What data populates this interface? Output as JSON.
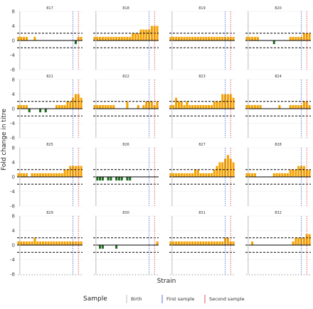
{
  "chart_data": {
    "type": "bar",
    "facet_layout": {
      "rows": 4,
      "cols": 4
    },
    "xlabel": "Strain",
    "ylabel": "Fold change in titre",
    "ylim": [
      -8,
      8
    ],
    "yticks": [
      -8,
      -4,
      0,
      4,
      8
    ],
    "reference_lines": {
      "dashed_y": [
        2,
        -2
      ],
      "solid_y": 0
    },
    "strain_count": 24,
    "strain_tick_labels": [
      "",
      "",
      "",
      "",
      "",
      "",
      "",
      "",
      "",
      "",
      "",
      "",
      "",
      "",
      "",
      "",
      "",
      "",
      "",
      "",
      "",
      "",
      "",
      ""
    ],
    "legend": {
      "title": "Sample",
      "placement": "bottom",
      "entries": [
        {
          "label": "Birth",
          "color": "#bdbdbd"
        },
        {
          "label": "First sample",
          "color": "#5b6fd6"
        },
        {
          "label": "Second sample",
          "color": "#e0525a"
        }
      ]
    },
    "colors": {
      "positive": "#f5a300",
      "negative": "#1f6b1f",
      "grid": "#ebebeb",
      "axis": "#000000"
    },
    "panels": [
      {
        "title": "817",
        "birth": 1,
        "first": 20.5,
        "second": 22.5,
        "values": [
          1,
          1,
          1,
          1,
          0,
          0,
          1,
          0,
          0,
          0,
          0,
          0,
          0,
          0,
          0,
          0,
          0,
          0,
          0,
          0,
          0,
          -1,
          1,
          1
        ]
      },
      {
        "title": "818",
        "birth": 1,
        "first": 20.5,
        "second": 22.5,
        "values": [
          1,
          1,
          1,
          1,
          1,
          1,
          1,
          1,
          1,
          1,
          1,
          1,
          1,
          1,
          2,
          2,
          2,
          3,
          3,
          3,
          3,
          4,
          4,
          4
        ]
      },
      {
        "title": "819",
        "birth": 1,
        "first": 20.5,
        "second": 22.5,
        "values": [
          1,
          1,
          1,
          1,
          1,
          1,
          1,
          1,
          1,
          1,
          1,
          1,
          1,
          1,
          1,
          1,
          1,
          1,
          1,
          1,
          1,
          1,
          1,
          1
        ]
      },
      {
        "title": "820",
        "birth": 1,
        "first": 20.5,
        "second": 22.5,
        "values": [
          1,
          1,
          1,
          1,
          1,
          0,
          0,
          0,
          0,
          0,
          -1,
          0,
          0,
          0,
          0,
          0,
          1,
          1,
          1,
          1,
          1,
          2,
          2,
          2
        ]
      },
      {
        "title": "821",
        "birth": 1,
        "first": 20.5,
        "second": 22.5,
        "values": [
          1,
          1,
          1,
          1,
          -1,
          0,
          0,
          0,
          -1,
          0,
          -1,
          0,
          0,
          0,
          1,
          1,
          1,
          1,
          2,
          2,
          3,
          4,
          4,
          3
        ]
      },
      {
        "title": "822",
        "birth": 1,
        "first": 20.5,
        "second": 22.5,
        "values": [
          1,
          1,
          1,
          1,
          1,
          1,
          1,
          1,
          0,
          0,
          0,
          0,
          2,
          0,
          0,
          0,
          1,
          0,
          1,
          2,
          2,
          2,
          1,
          2
        ]
      },
      {
        "title": "823",
        "birth": 1,
        "first": 20.5,
        "second": 22.5,
        "values": [
          1,
          1,
          3,
          2,
          2,
          1,
          2,
          1,
          1,
          1,
          1,
          1,
          1,
          1,
          1,
          1,
          2,
          2,
          2,
          4,
          4,
          4,
          4,
          3
        ]
      },
      {
        "title": "824",
        "birth": 1,
        "first": 20.5,
        "second": 22.5,
        "values": [
          1,
          1,
          1,
          1,
          1,
          1,
          0,
          0,
          0,
          0,
          0,
          0,
          1,
          0,
          0,
          0,
          1,
          1,
          1,
          1,
          1,
          2,
          2,
          1
        ]
      },
      {
        "title": "825",
        "birth": 1,
        "first": 20.5,
        "second": 22.5,
        "values": [
          1,
          1,
          1,
          1,
          0,
          1,
          1,
          1,
          1,
          1,
          1,
          1,
          1,
          1,
          1,
          1,
          1,
          2,
          2,
          3,
          3,
          3,
          3,
          3
        ]
      },
      {
        "title": "826",
        "birth": 1,
        "first": 20.5,
        "second": 22.5,
        "values": [
          0,
          -1,
          -1,
          -1,
          0,
          -1,
          -1,
          0,
          -1,
          -1,
          -1,
          0,
          -1,
          -1,
          0,
          0,
          0,
          0,
          0,
          0,
          0,
          0,
          0,
          0
        ]
      },
      {
        "title": "827",
        "birth": 1,
        "first": 20.5,
        "second": 22.5,
        "values": [
          1,
          1,
          1,
          1,
          1,
          1,
          1,
          1,
          1,
          2,
          2,
          1,
          1,
          1,
          1,
          1,
          2,
          3,
          4,
          4,
          5,
          6,
          5,
          4
        ]
      },
      {
        "title": "828",
        "birth": 1,
        "first": 20.5,
        "second": 22.5,
        "values": [
          1,
          1,
          1,
          1,
          0,
          0,
          0,
          0,
          0,
          0,
          1,
          1,
          1,
          1,
          1,
          1,
          2,
          2,
          2,
          3,
          3,
          3,
          2,
          2
        ]
      },
      {
        "title": "829",
        "birth": 1,
        "first": 20.5,
        "second": 22.5,
        "values": [
          1,
          1,
          1,
          1,
          1,
          1,
          2,
          1,
          1,
          1,
          1,
          1,
          1,
          1,
          1,
          1,
          1,
          1,
          1,
          1,
          1,
          1,
          1,
          1
        ]
      },
      {
        "title": "830",
        "birth": 1,
        "first": 20.5,
        "second": 22.5,
        "values": [
          0,
          0,
          -1,
          -1,
          0,
          0,
          0,
          0,
          -1,
          0,
          0,
          0,
          0,
          0,
          0,
          0,
          0,
          0,
          0,
          0,
          0,
          0,
          0,
          1
        ]
      },
      {
        "title": "831",
        "birth": 1,
        "first": 20.5,
        "second": 22.5,
        "values": [
          1,
          1,
          1,
          1,
          1,
          1,
          1,
          1,
          1,
          1,
          1,
          1,
          1,
          1,
          1,
          1,
          1,
          1,
          1,
          1,
          2,
          2,
          1,
          1
        ]
      },
      {
        "title": "832",
        "birth": 1,
        "first": 20.5,
        "second": 22.5,
        "values": [
          0,
          0,
          1,
          0,
          0,
          0,
          0,
          0,
          0,
          0,
          0,
          0,
          0,
          0,
          0,
          0,
          0,
          1,
          2,
          2,
          2,
          2,
          3,
          3
        ]
      }
    ]
  }
}
